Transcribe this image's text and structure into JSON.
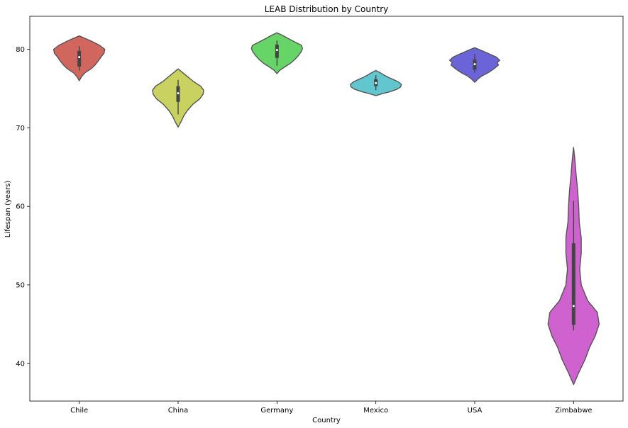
{
  "chart_data": {
    "type": "violin",
    "title": "LEAB Distribution by Country",
    "xlabel": "Country",
    "ylabel": "Lifespan (years)",
    "ylim": [
      35.2,
      84.2
    ],
    "yticks": [
      40,
      50,
      60,
      70,
      80
    ],
    "grid": false,
    "categories": [
      "Chile",
      "China",
      "Germany",
      "Mexico",
      "USA",
      "Zimbabwe"
    ],
    "colors": [
      "#d1665f",
      "#c9d260",
      "#66d467",
      "#62c6cf",
      "#6b63d8",
      "#cf62cf"
    ],
    "series": [
      {
        "name": "Chile",
        "min": 76.0,
        "max": 81.7,
        "q1": 77.8,
        "median": 79.0,
        "q3": 79.8,
        "whisker_low": 77.3,
        "whisker_high": 80.4,
        "profile": [
          [
            76.0,
            0.0
          ],
          [
            76.5,
            0.09
          ],
          [
            77.0,
            0.22
          ],
          [
            77.5,
            0.46
          ],
          [
            78.0,
            0.62
          ],
          [
            78.5,
            0.74
          ],
          [
            79.0,
            0.85
          ],
          [
            79.5,
            0.97
          ],
          [
            80.0,
            1.0
          ],
          [
            80.5,
            0.8
          ],
          [
            81.0,
            0.5
          ],
          [
            81.4,
            0.22
          ],
          [
            81.7,
            0.0
          ]
        ]
      },
      {
        "name": "China",
        "min": 70.1,
        "max": 77.5,
        "q1": 73.3,
        "median": 74.4,
        "q3": 75.3,
        "whisker_low": 71.7,
        "whisker_high": 76.1,
        "profile": [
          [
            70.1,
            0.0
          ],
          [
            70.8,
            0.12
          ],
          [
            71.5,
            0.22
          ],
          [
            72.2,
            0.36
          ],
          [
            73.0,
            0.58
          ],
          [
            73.7,
            0.85
          ],
          [
            74.3,
            0.98
          ],
          [
            74.8,
            1.0
          ],
          [
            75.3,
            0.88
          ],
          [
            75.9,
            0.6
          ],
          [
            76.6,
            0.34
          ],
          [
            77.1,
            0.15
          ],
          [
            77.5,
            0.0
          ]
        ]
      },
      {
        "name": "Germany",
        "min": 76.9,
        "max": 82.1,
        "q1": 78.9,
        "median": 79.9,
        "q3": 80.6,
        "whisker_low": 77.9,
        "whisker_high": 81.1,
        "profile": [
          [
            76.9,
            0.0
          ],
          [
            77.3,
            0.1
          ],
          [
            77.7,
            0.28
          ],
          [
            78.2,
            0.52
          ],
          [
            78.7,
            0.7
          ],
          [
            79.2,
            0.84
          ],
          [
            79.7,
            0.95
          ],
          [
            80.1,
            1.0
          ],
          [
            80.5,
            0.96
          ],
          [
            80.9,
            0.72
          ],
          [
            81.4,
            0.42
          ],
          [
            81.8,
            0.2
          ],
          [
            82.1,
            0.0
          ]
        ]
      },
      {
        "name": "Mexico",
        "min": 74.1,
        "max": 77.3,
        "q1": 75.3,
        "median": 75.7,
        "q3": 76.2,
        "whisker_low": 74.8,
        "whisker_high": 76.7,
        "profile": [
          [
            74.1,
            0.0
          ],
          [
            74.35,
            0.25
          ],
          [
            74.6,
            0.55
          ],
          [
            74.9,
            0.82
          ],
          [
            75.2,
            0.97
          ],
          [
            75.5,
            1.0
          ],
          [
            75.8,
            0.9
          ],
          [
            76.1,
            0.72
          ],
          [
            76.4,
            0.5
          ],
          [
            76.7,
            0.33
          ],
          [
            77.0,
            0.18
          ],
          [
            77.3,
            0.0
          ]
        ]
      },
      {
        "name": "USA",
        "min": 75.8,
        "max": 80.2,
        "q1": 77.4,
        "median": 78.1,
        "q3": 78.7,
        "whisker_low": 77.0,
        "whisker_high": 79.4,
        "profile": [
          [
            75.8,
            0.0
          ],
          [
            76.2,
            0.12
          ],
          [
            76.6,
            0.28
          ],
          [
            77.0,
            0.52
          ],
          [
            77.5,
            0.75
          ],
          [
            78.0,
            0.93
          ],
          [
            78.3,
            0.88
          ],
          [
            78.6,
            0.98
          ],
          [
            79.0,
            0.85
          ],
          [
            79.4,
            0.58
          ],
          [
            79.8,
            0.3
          ],
          [
            80.2,
            0.0
          ]
        ]
      },
      {
        "name": "Zimbabwe",
        "min": 37.3,
        "max": 67.5,
        "q1": 44.9,
        "median": 47.3,
        "q3": 55.3,
        "whisker_low": 44.2,
        "whisker_high": 60.7,
        "profile": [
          [
            37.3,
            0.0
          ],
          [
            38.8,
            0.2
          ],
          [
            40.5,
            0.45
          ],
          [
            42.0,
            0.62
          ],
          [
            43.5,
            0.85
          ],
          [
            45.0,
            1.0
          ],
          [
            46.5,
            0.93
          ],
          [
            48.0,
            0.55
          ],
          [
            50.0,
            0.3
          ],
          [
            52.0,
            0.24
          ],
          [
            54.0,
            0.3
          ],
          [
            56.0,
            0.3
          ],
          [
            58.0,
            0.22
          ],
          [
            60.0,
            0.2
          ],
          [
            62.0,
            0.16
          ],
          [
            64.0,
            0.1
          ],
          [
            66.0,
            0.05
          ],
          [
            67.5,
            0.0
          ]
        ]
      }
    ]
  }
}
